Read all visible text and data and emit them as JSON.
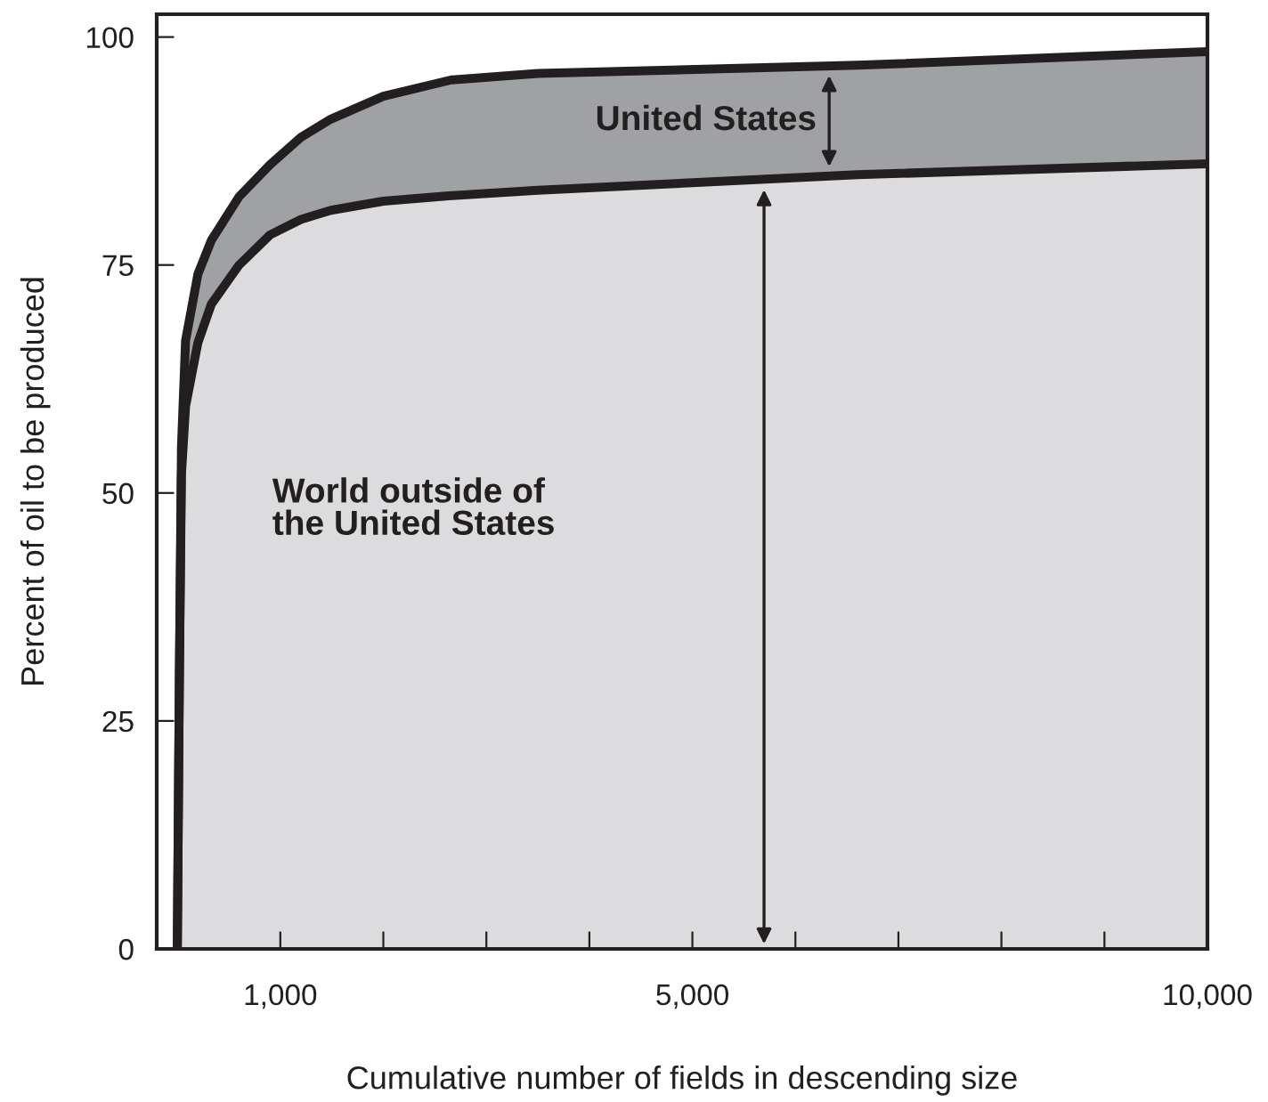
{
  "chart_data": {
    "type": "area",
    "stacked": true,
    "xlabel": "Cumulative number of fields in descending size",
    "ylabel": "Percent of oil to be produced",
    "x": [
      0,
      20,
      40,
      80,
      200,
      330,
      600,
      900,
      1200,
      1490,
      2000,
      2660,
      3500,
      6600,
      10000
    ],
    "series": [
      {
        "color": "#dcdcde",
        "values": [
          0,
          30,
          52,
          59.5,
          66.5,
          70.7,
          75,
          78.3,
          80,
          81,
          82,
          82.6,
          83.2,
          84.9,
          86.1
        ]
      },
      {
        "color": "#a0a1a4",
        "values": [
          0,
          0,
          3,
          7.2,
          7.5,
          7,
          7.5,
          7.7,
          9,
          10,
          11.5,
          12.7,
          12.8,
          12,
          12.3
        ]
      }
    ],
    "annotations": [
      "United States",
      "World outside of\nthe United States"
    ],
    "xlim": [
      -200,
      10000
    ],
    "ylim": [
      0,
      102.5
    ],
    "xticks": [
      {
        "value": 1000,
        "label": "1,000"
      },
      {
        "value": 2000,
        "label": null
      },
      {
        "value": 3000,
        "label": null
      },
      {
        "value": 4000,
        "label": null
      },
      {
        "value": 5000,
        "label": "5,000"
      },
      {
        "value": 6000,
        "label": null
      },
      {
        "value": 7000,
        "label": null
      },
      {
        "value": 8000,
        "label": null
      },
      {
        "value": 9000,
        "label": null
      },
      {
        "value": 10000,
        "label": "10,000"
      }
    ],
    "yticks": [
      0,
      25,
      50,
      75,
      100
    ],
    "grid": false
  }
}
